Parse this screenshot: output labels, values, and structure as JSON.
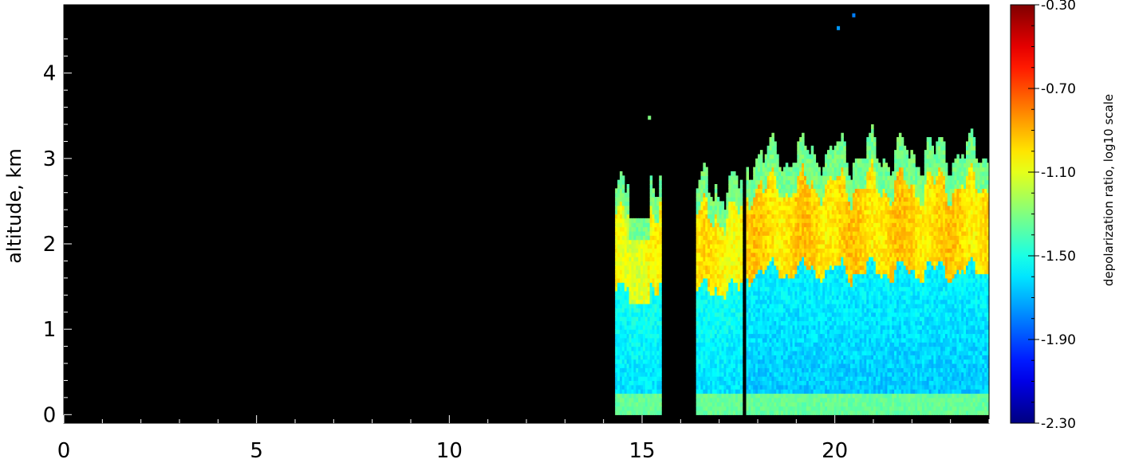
{
  "chart_data": {
    "type": "heatmap",
    "title": "",
    "xlabel": "",
    "ylabel": "altitude, km",
    "xlim": [
      0,
      24
    ],
    "ylim": [
      -0.1,
      4.8
    ],
    "x_ticks": [
      "0",
      "5",
      "10",
      "15",
      "20"
    ],
    "x_tick_values": [
      0,
      5,
      10,
      15,
      20
    ],
    "y_ticks": [
      "0",
      "1",
      "2",
      "3",
      "4"
    ],
    "y_tick_values": [
      0,
      1,
      2,
      3,
      4
    ],
    "background_color": "#000000",
    "grid": false,
    "colorbar": {
      "label": "depolarization ratio, log10 scale",
      "ticks": [
        "-0.30",
        "-0.70",
        "-1.10",
        "-1.50",
        "-1.90",
        "-2.30"
      ],
      "tick_values": [
        -0.3,
        -0.7,
        -1.1,
        -1.5,
        -1.9,
        -2.3
      ],
      "range": [
        -2.3,
        -0.3
      ],
      "colormap": "jet"
    },
    "data_summary": [
      {
        "segment": "15-15.5 h",
        "x_range": [
          14.3,
          15.5
        ],
        "cloud_top_km": 2.9,
        "upper_layer_value": -1.0,
        "lower_layer_value": -1.55
      },
      {
        "segment": "16.5-17.6 h",
        "x_range": [
          16.4,
          17.6
        ],
        "cloud_top_km": 2.7,
        "upper_layer_value": -0.95,
        "lower_layer_value": -1.55
      },
      {
        "segment": "17.7-24 h",
        "x_range": [
          17.7,
          24.0
        ],
        "cloud_top_km": 3.1,
        "upper_layer_value": -0.9,
        "lower_layer_value": -1.6
      }
    ]
  }
}
